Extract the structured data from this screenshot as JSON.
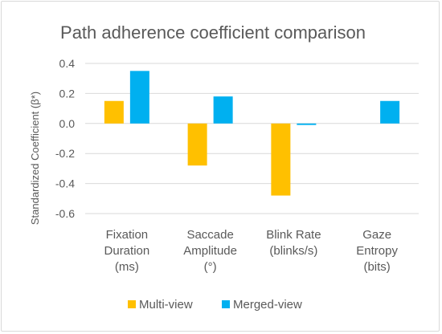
{
  "chart_data": {
    "type": "bar",
    "title": "Path adherence coefficient comparison",
    "xlabel": "",
    "ylabel": "Standardized Coefficient (β*)",
    "ylim": [
      -0.6,
      0.4
    ],
    "yticks": [
      0.4,
      0.2,
      0.0,
      -0.2,
      -0.4,
      -0.6
    ],
    "ytick_labels": [
      "0.4",
      "0.2",
      "0.0",
      "-0.2",
      "-0.4",
      "-0.6"
    ],
    "grid": true,
    "legend_position": "bottom",
    "categories": [
      [
        "Fixation",
        "Duration",
        "(ms)"
      ],
      [
        "Saccade",
        "Amplitude",
        "(°)"
      ],
      [
        "Blink Rate",
        "(blinks/s)"
      ],
      [
        "Gaze",
        "Entropy",
        "(bits)"
      ]
    ],
    "series": [
      {
        "name": "Multi-view",
        "color": "#FFC000",
        "values": [
          0.15,
          -0.28,
          -0.48,
          null
        ]
      },
      {
        "name": "Merged-view",
        "color": "#00B0F0",
        "values": [
          0.35,
          0.18,
          -0.01,
          0.15
        ]
      }
    ]
  }
}
